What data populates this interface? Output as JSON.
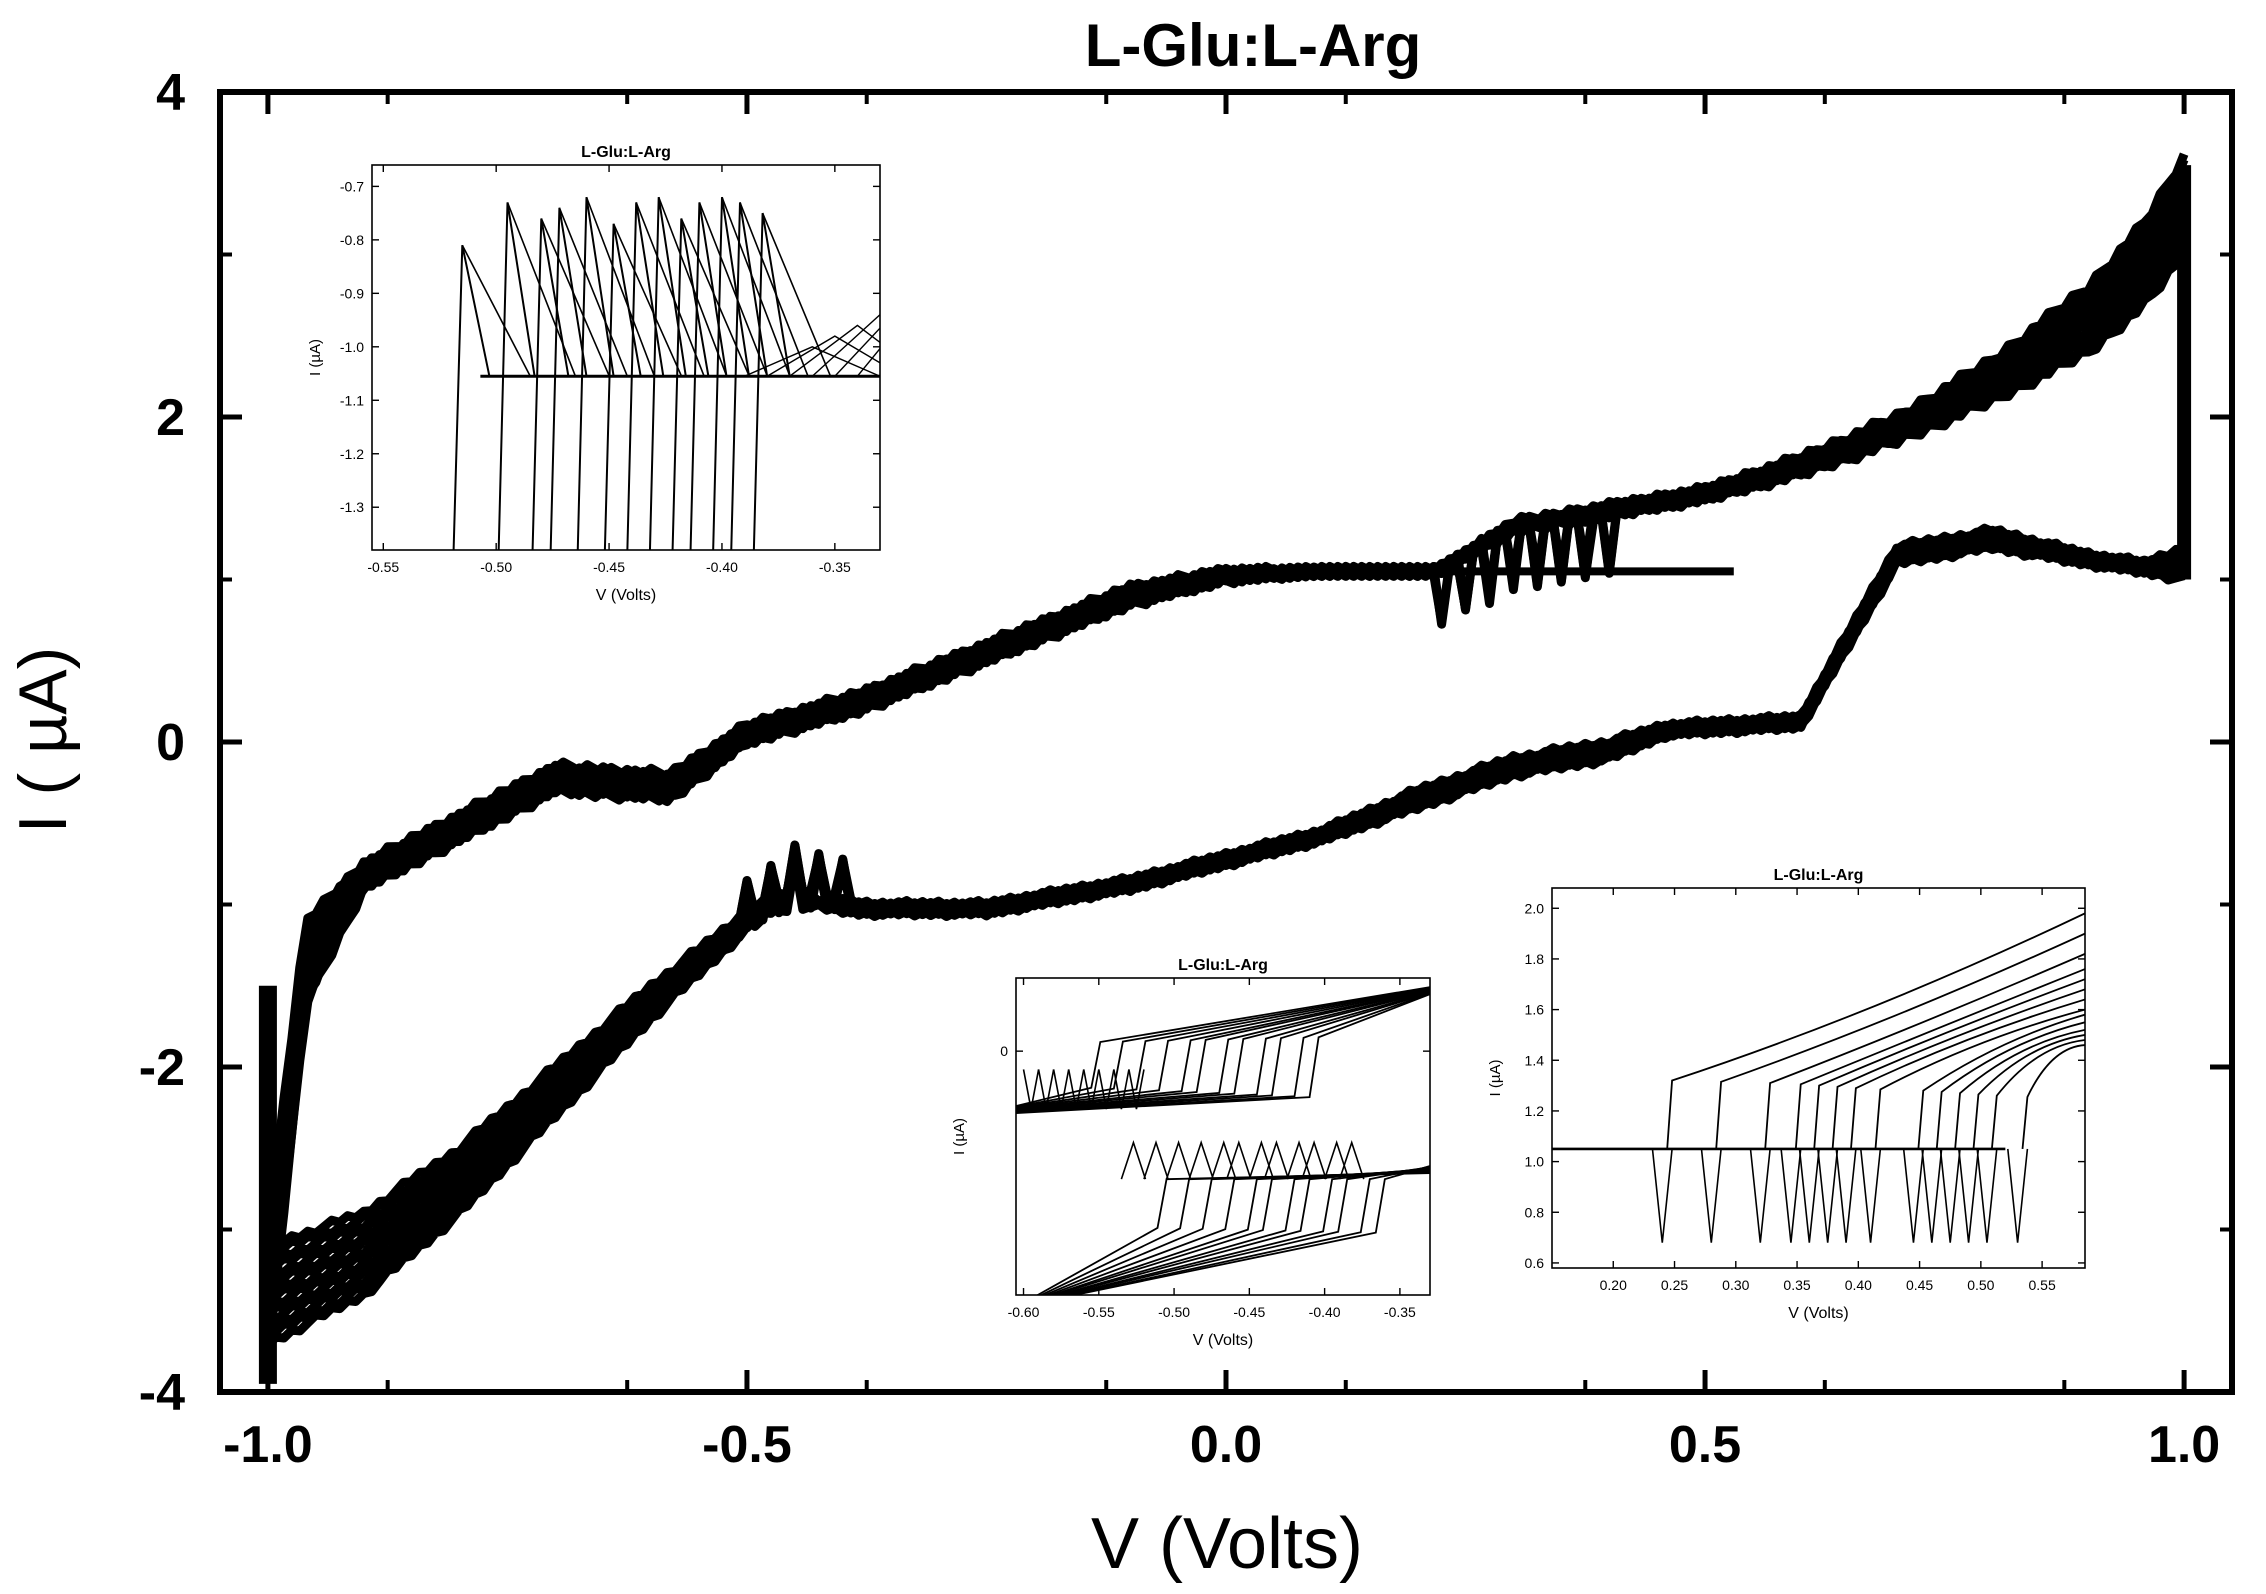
{
  "chart_data": [
    {
      "id": "main",
      "type": "line",
      "title": "L-Glu:L-Arg",
      "xlabel": "V (Volts)",
      "ylabel": "I ( µA)",
      "xlim": [
        -1.05,
        1.05
      ],
      "ylim": [
        -4,
        4
      ],
      "xticks": [
        -1.0,
        -0.5,
        0.0,
        0.5,
        1.0
      ],
      "xtick_labels": [
        "-1.0",
        "-0.5",
        "0.0",
        "0.5",
        "1.0"
      ],
      "yticks": [
        -4,
        -2,
        0,
        2,
        4
      ],
      "ytick_labels": [
        "-4",
        "-2",
        "0",
        "2",
        "4"
      ],
      "grid": false,
      "legend": "none",
      "series_color": "#000000",
      "series": [
        {
          "x": [
            -1.0,
            -0.96,
            -0.9,
            -0.8,
            -0.7,
            -0.58,
            -0.5,
            -0.38,
            -0.25,
            -0.1,
            0.0,
            0.1,
            0.22,
            0.3,
            0.4,
            0.5,
            0.6,
            0.7,
            0.8,
            0.9,
            0.96,
            1.0
          ],
          "y": [
            -3.8,
            -1.6,
            -0.9,
            -0.6,
            -0.3,
            -0.35,
            0.0,
            0.2,
            0.5,
            0.85,
            1.0,
            1.05,
            1.05,
            1.35,
            1.45,
            1.55,
            1.75,
            2.0,
            2.35,
            2.8,
            3.2,
            3.6
          ]
        },
        {
          "x": [
            1.0,
            0.96,
            0.9,
            0.8,
            0.7,
            0.6,
            0.46,
            0.4,
            0.3,
            0.2,
            0.1,
            0.0,
            -0.1,
            -0.25,
            -0.38,
            -0.45,
            -0.5,
            -0.6,
            -0.7,
            -0.8,
            -0.9,
            -1.0
          ],
          "y": [
            1.2,
            1.1,
            1.15,
            1.3,
            1.2,
            0.15,
            0.1,
            0.0,
            -0.1,
            -0.3,
            -0.55,
            -0.7,
            -0.85,
            -1.0,
            -1.0,
            -0.9,
            -1.05,
            -1.5,
            -2.0,
            -2.5,
            -2.9,
            -3.1
          ]
        },
        {
          "x": [
            -1.0,
            -0.96,
            -0.9,
            -0.8,
            -0.7,
            -0.58,
            -0.5,
            -0.38,
            -0.25,
            -0.1,
            0.0,
            0.1,
            0.22,
            0.3,
            0.4,
            0.5,
            0.6,
            0.7,
            0.8,
            0.9,
            0.96,
            1.0
          ],
          "y": [
            -3.0,
            -1.1,
            -0.75,
            -0.45,
            -0.15,
            -0.2,
            0.1,
            0.3,
            0.6,
            0.95,
            1.05,
            1.05,
            1.05,
            1.3,
            1.4,
            1.5,
            1.65,
            1.85,
            2.1,
            2.4,
            2.7,
            3.0
          ]
        },
        {
          "x": [
            1.0,
            0.96,
            0.9,
            0.8,
            0.7,
            0.6,
            0.46,
            0.4,
            0.3,
            0.2,
            0.1,
            0.0,
            -0.1,
            -0.25,
            -0.38,
            -0.45,
            -0.5,
            -0.6,
            -0.7,
            -0.8,
            -0.9,
            -1.0
          ],
          "y": [
            1.0,
            1.05,
            1.1,
            1.2,
            1.1,
            0.1,
            0.05,
            -0.1,
            -0.2,
            -0.4,
            -0.6,
            -0.75,
            -0.9,
            -1.05,
            -1.05,
            -1.0,
            -1.15,
            -1.7,
            -2.3,
            -2.9,
            -3.4,
            -3.7
          ]
        }
      ]
    },
    {
      "id": "inset-top-left",
      "type": "line",
      "title": "L-Glu:L-Arg",
      "xlabel": "V (Volts)",
      "ylabel": "I (µA)",
      "xlim": [
        -0.555,
        -0.33
      ],
      "ylim": [
        -1.38,
        -0.66
      ],
      "xtick_labels": [
        "-0.55",
        "-0.50",
        "-0.45",
        "-0.40",
        "-0.35"
      ],
      "xticks": [
        -0.55,
        -0.5,
        -0.45,
        -0.4,
        -0.35
      ],
      "ytick_labels": [
        "-0.7",
        "-0.8",
        "-0.9",
        "-1.0",
        "-1.1",
        "-1.2",
        "-1.3"
      ],
      "yticks": [
        -0.7,
        -0.8,
        -0.9,
        -1.0,
        -1.1,
        -1.2,
        -1.3
      ],
      "baseline": -1.055,
      "spike_x": [
        -0.515,
        -0.495,
        -0.48,
        -0.472,
        -0.46,
        -0.448,
        -0.438,
        -0.428,
        -0.418,
        -0.41,
        -0.4,
        -0.392,
        -0.382
      ],
      "spike_top": [
        -0.81,
        -0.73,
        -0.76,
        -0.74,
        -0.72,
        -0.77,
        -0.73,
        -0.72,
        -0.76,
        -0.73,
        -0.72,
        -0.73,
        -0.75
      ]
    },
    {
      "id": "inset-bottom-center",
      "type": "line",
      "title": "L-Glu:L-Arg",
      "xlabel": "V (Volts)",
      "ylabel": "I (µA)",
      "xlim": [
        -0.605,
        -0.33
      ],
      "ylim": [
        -4,
        1.2
      ],
      "xtick_labels": [
        "-0.60",
        "-0.55",
        "-0.50",
        "-0.45",
        "-0.40",
        "-0.35"
      ],
      "xticks": [
        -0.6,
        -0.55,
        -0.5,
        -0.45,
        -0.4,
        -0.35
      ],
      "ytick_labels": [
        "0"
      ],
      "yticks": [
        0
      ],
      "step_x": [
        -0.555,
        -0.54,
        -0.525,
        -0.51,
        -0.495,
        -0.485,
        -0.47,
        -0.46,
        -0.445,
        -0.435,
        -0.42,
        -0.41
      ]
    },
    {
      "id": "inset-bottom-right",
      "type": "line",
      "title": "L-Glu:L-Arg",
      "xlabel": "V (Volts)",
      "ylabel": "I (µA)",
      "xlim": [
        0.15,
        0.585
      ],
      "ylim": [
        0.58,
        2.08
      ],
      "xtick_labels": [
        "0.20",
        "0.25",
        "0.30",
        "0.35",
        "0.40",
        "0.45",
        "0.50",
        "0.55"
      ],
      "xticks": [
        0.2,
        0.25,
        0.3,
        0.35,
        0.4,
        0.45,
        0.5,
        0.55
      ],
      "ytick_labels": [
        "0.6",
        "0.8",
        "1.0",
        "1.2",
        "1.4",
        "1.6",
        "1.8",
        "2.0"
      ],
      "yticks": [
        0.6,
        0.8,
        1.0,
        1.2,
        1.4,
        1.6,
        1.8,
        2.0
      ],
      "baseline": 1.05,
      "switch_x": [
        0.24,
        0.28,
        0.32,
        0.345,
        0.36,
        0.375,
        0.39,
        0.41,
        0.445,
        0.46,
        0.475,
        0.49,
        0.505,
        0.53
      ],
      "end_y": [
        1.98,
        1.9,
        1.82,
        1.76,
        1.72,
        1.68,
        1.64,
        1.6,
        1.58,
        1.55,
        1.52,
        1.5,
        1.48,
        1.46
      ]
    }
  ]
}
